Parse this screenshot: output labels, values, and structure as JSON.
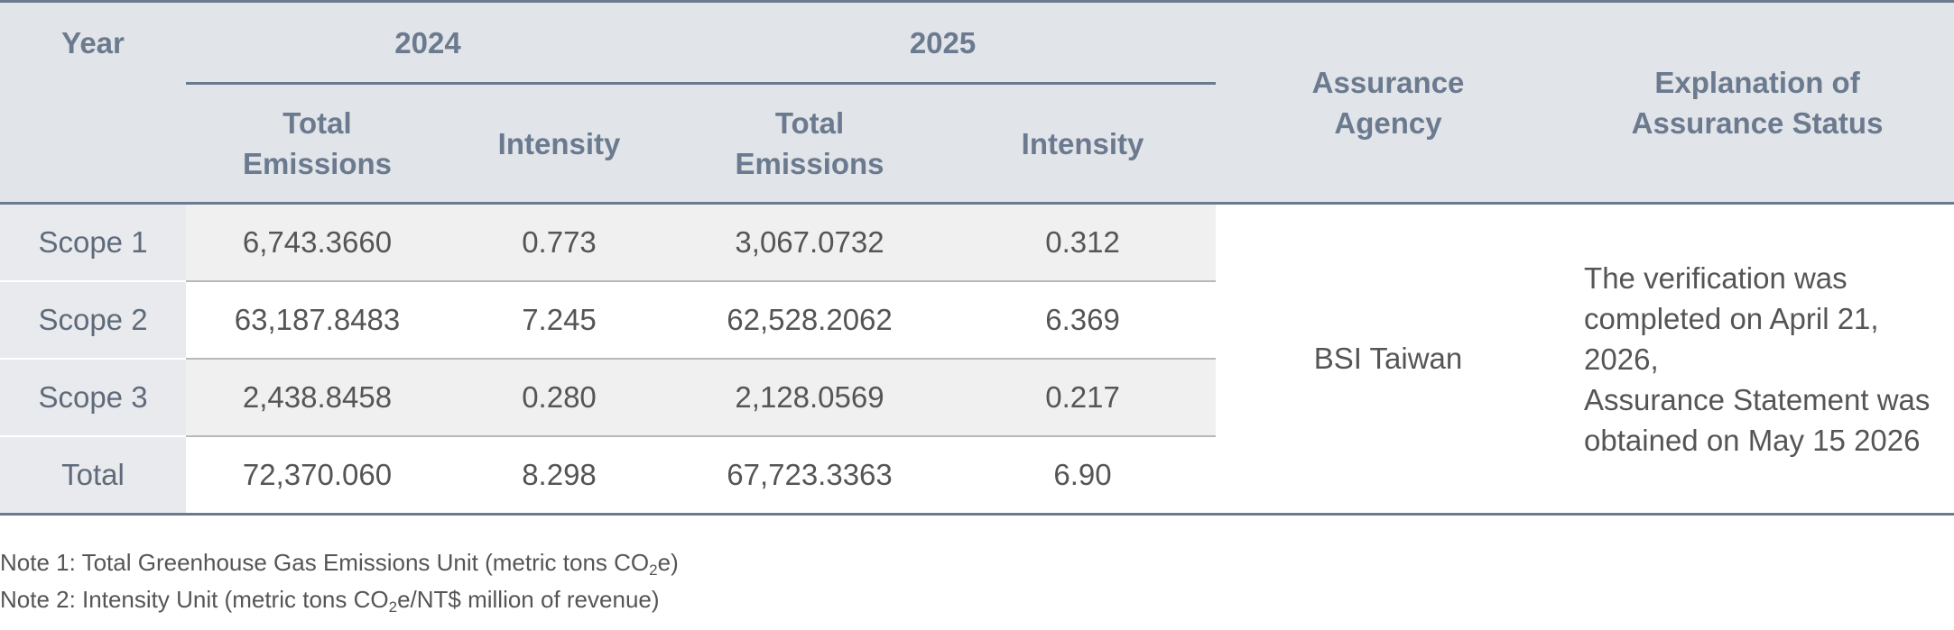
{
  "table": {
    "header": {
      "year": "Year",
      "years": [
        "2024",
        "2025"
      ],
      "agency": "Assurance Agency",
      "explanation": "Explanation of Assurance Status",
      "sub": [
        "Total Emissions",
        "Intensity",
        "Total Emissions",
        "Intensity"
      ]
    },
    "rows": [
      [
        "Scope 1",
        "6,743.3660",
        "0.773",
        "3,067.0732",
        "0.312"
      ],
      [
        "Scope 2",
        "63,187.8483",
        "7.245",
        "62,528.2062",
        "6.369"
      ],
      [
        "Scope 3",
        "2,438.8458",
        "0.280",
        "2,128.0569",
        "0.217"
      ],
      [
        "Total",
        "72,370.060",
        "8.298",
        "67,723.3363",
        "6.90"
      ]
    ],
    "agency": "BSI Taiwan",
    "explanation": [
      "The verification was completed on April 21, 2026,",
      "Assurance Statement was obtained on May 15 2026"
    ]
  },
  "notes": [
    [
      "Note 1: Total Greenhouse Gas Emissions Unit (metric tons CO",
      "2",
      "e)"
    ],
    [
      "Note 2: Intensity Unit (metric tons CO",
      "2",
      "e/NT$ million of revenue)"
    ]
  ]
}
